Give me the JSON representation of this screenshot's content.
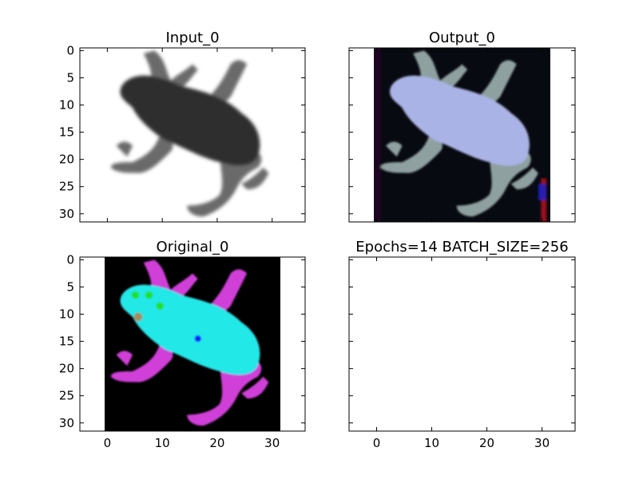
{
  "figure_title": "",
  "chart_data": [
    {
      "type": "heatmap",
      "title": "Input_0",
      "xlabel": "",
      "ylabel": "",
      "xlim": [
        -5,
        36
      ],
      "ylim": [
        31.5,
        -0.5
      ],
      "x_ticks": [
        0,
        10,
        20,
        30
      ],
      "y_ticks": [
        0,
        5,
        10,
        15,
        20,
        25,
        30
      ],
      "show_x_tick_labels": false,
      "show_y_tick_labels": true,
      "image_extent": [
        -0.5,
        31.5
      ],
      "image": "grayscale frog, dark body on white background",
      "palette": {
        "background": "#ffffff",
        "body": "#2f2f2f",
        "limbs": "#6a6a6a"
      }
    },
    {
      "type": "heatmap",
      "title": "Output_0",
      "xlabel": "",
      "ylabel": "",
      "xlim": [
        -5,
        36
      ],
      "ylim": [
        31.5,
        -0.5
      ],
      "x_ticks": [
        0,
        10,
        20,
        30
      ],
      "y_ticks": [
        0,
        5,
        10,
        15,
        20,
        25,
        30
      ],
      "show_x_tick_labels": false,
      "show_y_tick_labels": false,
      "image_extent": [
        -0.5,
        31.5
      ],
      "image": "reconstructed colour frog, pale lavender body on near-black noisy background",
      "palette": {
        "background": "#070a10",
        "body": "#aab3e6",
        "limbs": "#8fa0a0",
        "noise_red": "#c01020",
        "noise_blue": "#2020c0"
      }
    },
    {
      "type": "heatmap",
      "title": "Original_0",
      "xlabel": "",
      "ylabel": "",
      "xlim": [
        -5,
        36
      ],
      "ylim": [
        31.5,
        -0.5
      ],
      "x_ticks": [
        0,
        10,
        20,
        30
      ],
      "y_ticks": [
        0,
        5,
        10,
        15,
        20,
        25,
        30
      ],
      "show_x_tick_labels": true,
      "show_y_tick_labels": true,
      "image_extent": [
        -0.5,
        31.5
      ],
      "image": "original colour frog, cyan body with magenta limbs on black background",
      "palette": {
        "background": "#000000",
        "body": "#22e8e8",
        "limbs": "#d040d8",
        "spots": "#20e020",
        "eye": "#1010ff"
      }
    },
    {
      "type": "heatmap",
      "title": "Epochs=14 BATCH_SIZE=256",
      "xlabel": "",
      "ylabel": "",
      "xlim": [
        -5,
        36
      ],
      "ylim": [
        31.5,
        -0.5
      ],
      "x_ticks": [
        0,
        10,
        20,
        30
      ],
      "y_ticks": [
        0,
        5,
        10,
        15,
        20,
        25,
        30
      ],
      "show_x_tick_labels": true,
      "show_y_tick_labels": false,
      "image_extent": null,
      "image": ""
    }
  ]
}
